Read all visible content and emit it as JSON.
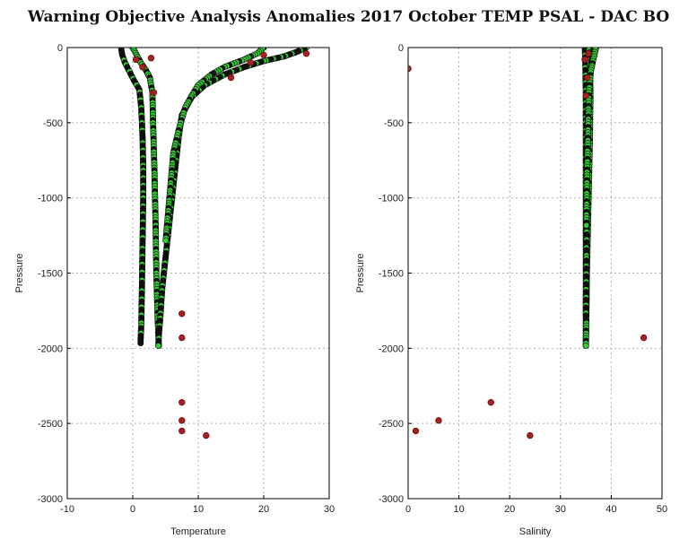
{
  "title": "Warning Objective Analysis Anomalies 2017 October TEMP PSAL - DAC BO",
  "colors": {
    "good": "#33cc33",
    "bad": "#a52020",
    "edge": "#0a0a0a",
    "grid": "#b0b0b0"
  },
  "chart_data": [
    {
      "type": "scatter",
      "xlabel": "Temperature",
      "ylabel": "Pressure",
      "xlim": [
        -10,
        30
      ],
      "ylim": [
        -3000,
        0
      ],
      "xticks": [
        -10,
        0,
        10,
        20,
        30
      ],
      "yticks": [
        0,
        -500,
        -1000,
        -1500,
        -2000,
        -2500,
        -3000
      ],
      "grid": true,
      "profiles": [
        {
          "x": [
            -1.8,
            -1.6,
            -1.2,
            -0.5,
            0.2,
            1.0,
            1.3,
            1.5,
            1.6,
            1.6,
            1.5,
            1.4,
            1.3,
            1.2,
            1.2
          ],
          "y": [
            0,
            -50,
            -100,
            -160,
            -220,
            -280,
            -400,
            -600,
            -800,
            -1000,
            -1300,
            -1600,
            -1850,
            -1950,
            -1980
          ]
        },
        {
          "x": [
            0.0,
            0.6,
            1.2,
            2.0,
            2.6,
            3.0,
            3.1,
            3.3,
            3.5,
            3.6,
            3.8,
            4.0
          ],
          "y": [
            0,
            -50,
            -100,
            -150,
            -200,
            -300,
            -500,
            -800,
            -1200,
            -1500,
            -1800,
            -2000
          ]
        },
        {
          "x": [
            26.5,
            25,
            23,
            20,
            17,
            14,
            11,
            9,
            7.5,
            7,
            6.5,
            6,
            5.5,
            5,
            4.5,
            4.2,
            4.0,
            3.9
          ],
          "y": [
            0,
            -30,
            -60,
            -90,
            -130,
            -180,
            -250,
            -330,
            -450,
            -600,
            -800,
            -1000,
            -1200,
            -1400,
            -1600,
            -1800,
            -1900,
            -2000
          ]
        },
        {
          "x": [
            20,
            19,
            17,
            14,
            12,
            10,
            9,
            8,
            7,
            6.2,
            5.8,
            5.4,
            5.0
          ],
          "y": [
            0,
            -40,
            -80,
            -130,
            -180,
            -250,
            -320,
            -400,
            -550,
            -700,
            -900,
            -1100,
            -1300
          ]
        }
      ],
      "flagged": {
        "x": [
          0.5,
          1.5,
          2.8,
          3.2,
          7.5,
          7.5,
          7.5,
          7.5,
          7.5,
          11.2,
          20,
          26.5,
          15,
          18
        ],
        "y": [
          -80,
          -130,
          -70,
          -300,
          -1770,
          -1930,
          -2360,
          -2480,
          -2550,
          -2580,
          -50,
          -40,
          -200,
          -100
        ]
      }
    },
    {
      "type": "scatter",
      "xlabel": "Salinity",
      "ylabel": "Pressure",
      "xlim": [
        0,
        50
      ],
      "ylim": [
        -3000,
        0
      ],
      "xticks": [
        0,
        10,
        20,
        30,
        40,
        50
      ],
      "yticks": [
        0,
        -500,
        -1000,
        -1500,
        -2000,
        -2500,
        -3000
      ],
      "grid": true,
      "profiles": [
        {
          "x": [
            34.8,
            34.9,
            35.0,
            35.0,
            35.0,
            35.0,
            35.0,
            35.0,
            35.0,
            35.0,
            35.0
          ],
          "y": [
            0,
            -100,
            -300,
            -500,
            -700,
            -900,
            -1200,
            -1500,
            -1800,
            -1950,
            -2000
          ]
        },
        {
          "x": [
            35.6,
            35.8,
            35.9,
            35.8,
            35.6,
            35.4,
            35.2,
            35.1,
            35.0
          ],
          "y": [
            0,
            -100,
            -300,
            -600,
            -900,
            -1200,
            -1500,
            -1800,
            -2000
          ]
        },
        {
          "x": [
            36.5,
            36.2,
            35.8,
            35.5,
            35.3,
            35.2,
            35.1,
            35.0
          ],
          "y": [
            0,
            -80,
            -200,
            -400,
            -700,
            -1000,
            -1400,
            -1800
          ]
        },
        {
          "x": [
            37.0,
            36.6,
            36.0,
            35.6,
            35.4,
            35.2,
            35.1
          ],
          "y": [
            0,
            -60,
            -150,
            -300,
            -600,
            -900,
            -1200
          ]
        }
      ],
      "flagged": {
        "x": [
          0,
          34.8,
          35.3,
          35.0,
          35.5,
          46.4,
          16.3,
          6,
          1.5,
          24
        ],
        "y": [
          -140,
          -80,
          -200,
          -320,
          -40,
          -1930,
          -2360,
          -2480,
          -2550,
          -2580
        ]
      }
    }
  ]
}
